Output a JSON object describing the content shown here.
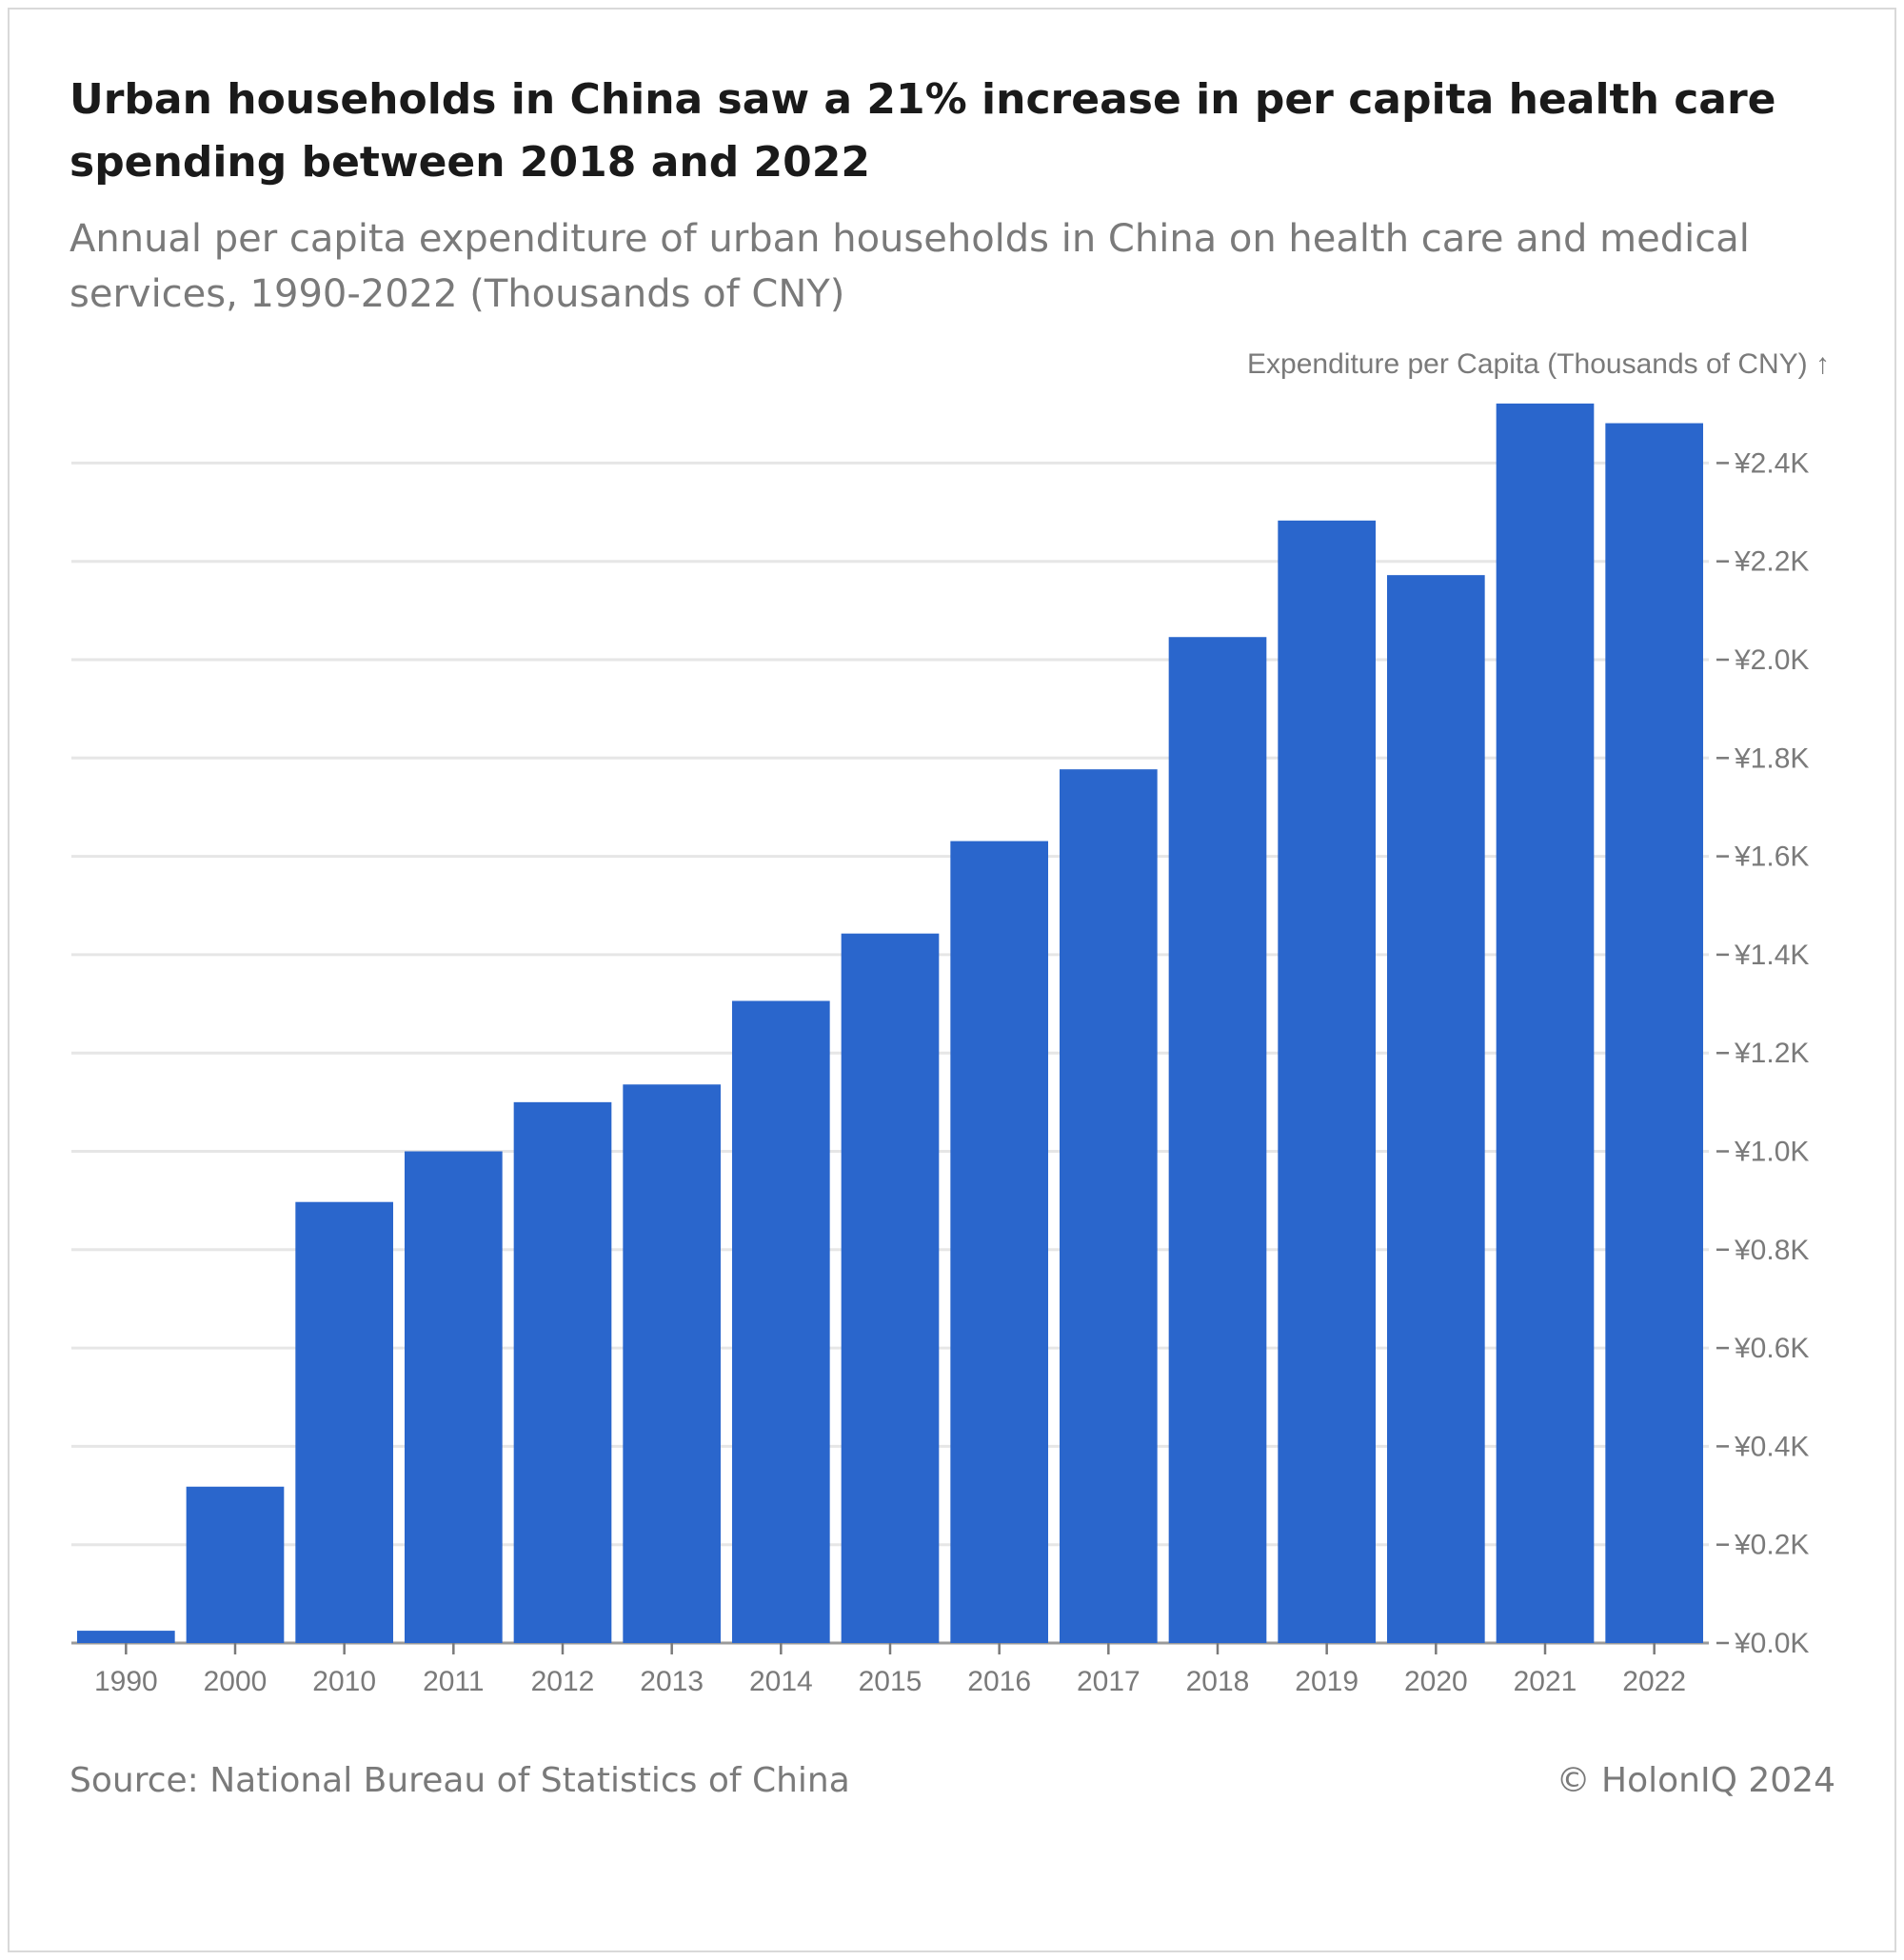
{
  "title": "Urban households in China saw a 21% increase in per capita health care spending between 2018 and 2022",
  "subtitle": "Annual per capita expenditure of urban households in China on health care and medical services, 1990-2022 (Thousands of CNY)",
  "source": "Source: National Bureau of Statistics of China",
  "copyright": "© HolonIQ 2024",
  "colors": {
    "bar": "#2a66cc",
    "grid": "#e6e6e6",
    "axis": "#7a7a7a"
  },
  "chart_data": {
    "type": "bar",
    "ylabel": "Expenditure per Capita (Thousands of CNY) ↑",
    "categories": [
      "1990",
      "2000",
      "2010",
      "2011",
      "2012",
      "2013",
      "2014",
      "2015",
      "2016",
      "2017",
      "2018",
      "2019",
      "2020",
      "2021",
      "2022"
    ],
    "values": [
      0.025,
      0.318,
      0.897,
      1.0,
      1.1,
      1.136,
      1.306,
      1.443,
      1.631,
      1.777,
      2.046,
      2.283,
      2.172,
      2.521,
      2.481
    ],
    "ylim": [
      0,
      2.5
    ],
    "yticks": [
      0.0,
      0.2,
      0.4,
      0.6,
      0.8,
      1.0,
      1.2,
      1.4,
      1.6,
      1.8,
      2.0,
      2.2,
      2.4
    ],
    "ytick_labels": [
      "¥0.0K",
      "¥0.2K",
      "¥0.4K",
      "¥0.6K",
      "¥0.8K",
      "¥1.0K",
      "¥1.2K",
      "¥1.4K",
      "¥1.6K",
      "¥1.8K",
      "¥2.0K",
      "¥2.2K",
      "¥2.4K"
    ],
    "grid": true,
    "y_axis_position": "right"
  }
}
